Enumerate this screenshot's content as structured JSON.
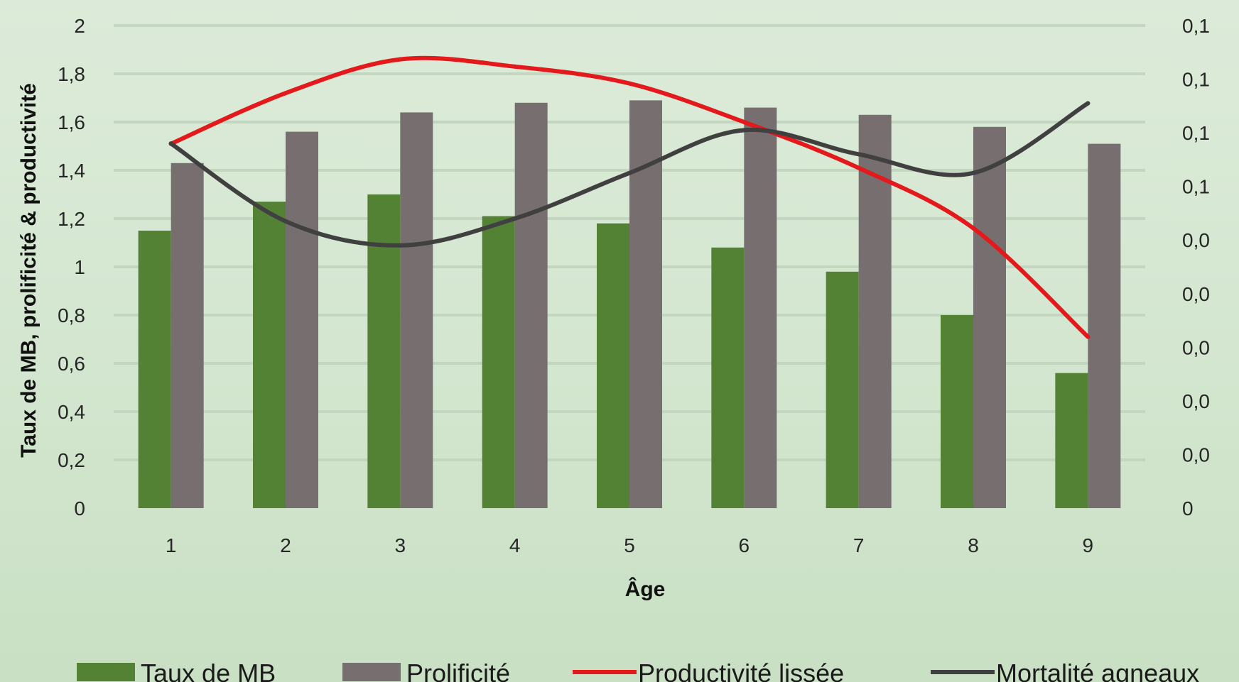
{
  "chart_data": {
    "type": "bar",
    "categories": [
      "1",
      "2",
      "3",
      "4",
      "5",
      "6",
      "7",
      "8",
      "9"
    ],
    "xlabel": "Âge",
    "ylabel": "Taux de MB, prolificité & productivité",
    "ylim": [
      0,
      2
    ],
    "y_ticks": [
      "0",
      "0,2",
      "0,4",
      "0,6",
      "0,8",
      "1",
      "1,2",
      "1,4",
      "1,6",
      "1,8",
      "2"
    ],
    "y2_ticks": [
      "0",
      "0,0",
      "0,0",
      "0,0",
      "0,0",
      "0,0",
      "0,1",
      "0,1",
      "0,1",
      "0,1"
    ],
    "y2_range": [
      0,
      0.18
    ],
    "grid": true,
    "legend_position": "bottom",
    "series": [
      {
        "name": "Taux de MB",
        "kind": "bar",
        "axis": "left",
        "color": "#548235",
        "values": [
          1.15,
          1.27,
          1.3,
          1.21,
          1.18,
          1.08,
          0.98,
          0.8,
          0.56
        ]
      },
      {
        "name": "Prolificité",
        "kind": "bar",
        "axis": "left",
        "color": "#766e6f",
        "values": [
          1.43,
          1.56,
          1.64,
          1.68,
          1.69,
          1.66,
          1.63,
          1.58,
          1.51
        ]
      },
      {
        "name": "Productivité lissée",
        "kind": "line",
        "axis": "left",
        "color": "#e3191c",
        "values": [
          1.51,
          1.72,
          1.86,
          1.83,
          1.76,
          1.6,
          1.41,
          1.16,
          0.71
        ]
      },
      {
        "name": "Mortalité agneaux",
        "kind": "line",
        "axis": "right",
        "color": "#404040",
        "values": [
          0.136,
          0.107,
          0.098,
          0.108,
          0.125,
          0.141,
          0.132,
          0.125,
          0.151
        ]
      }
    ]
  }
}
